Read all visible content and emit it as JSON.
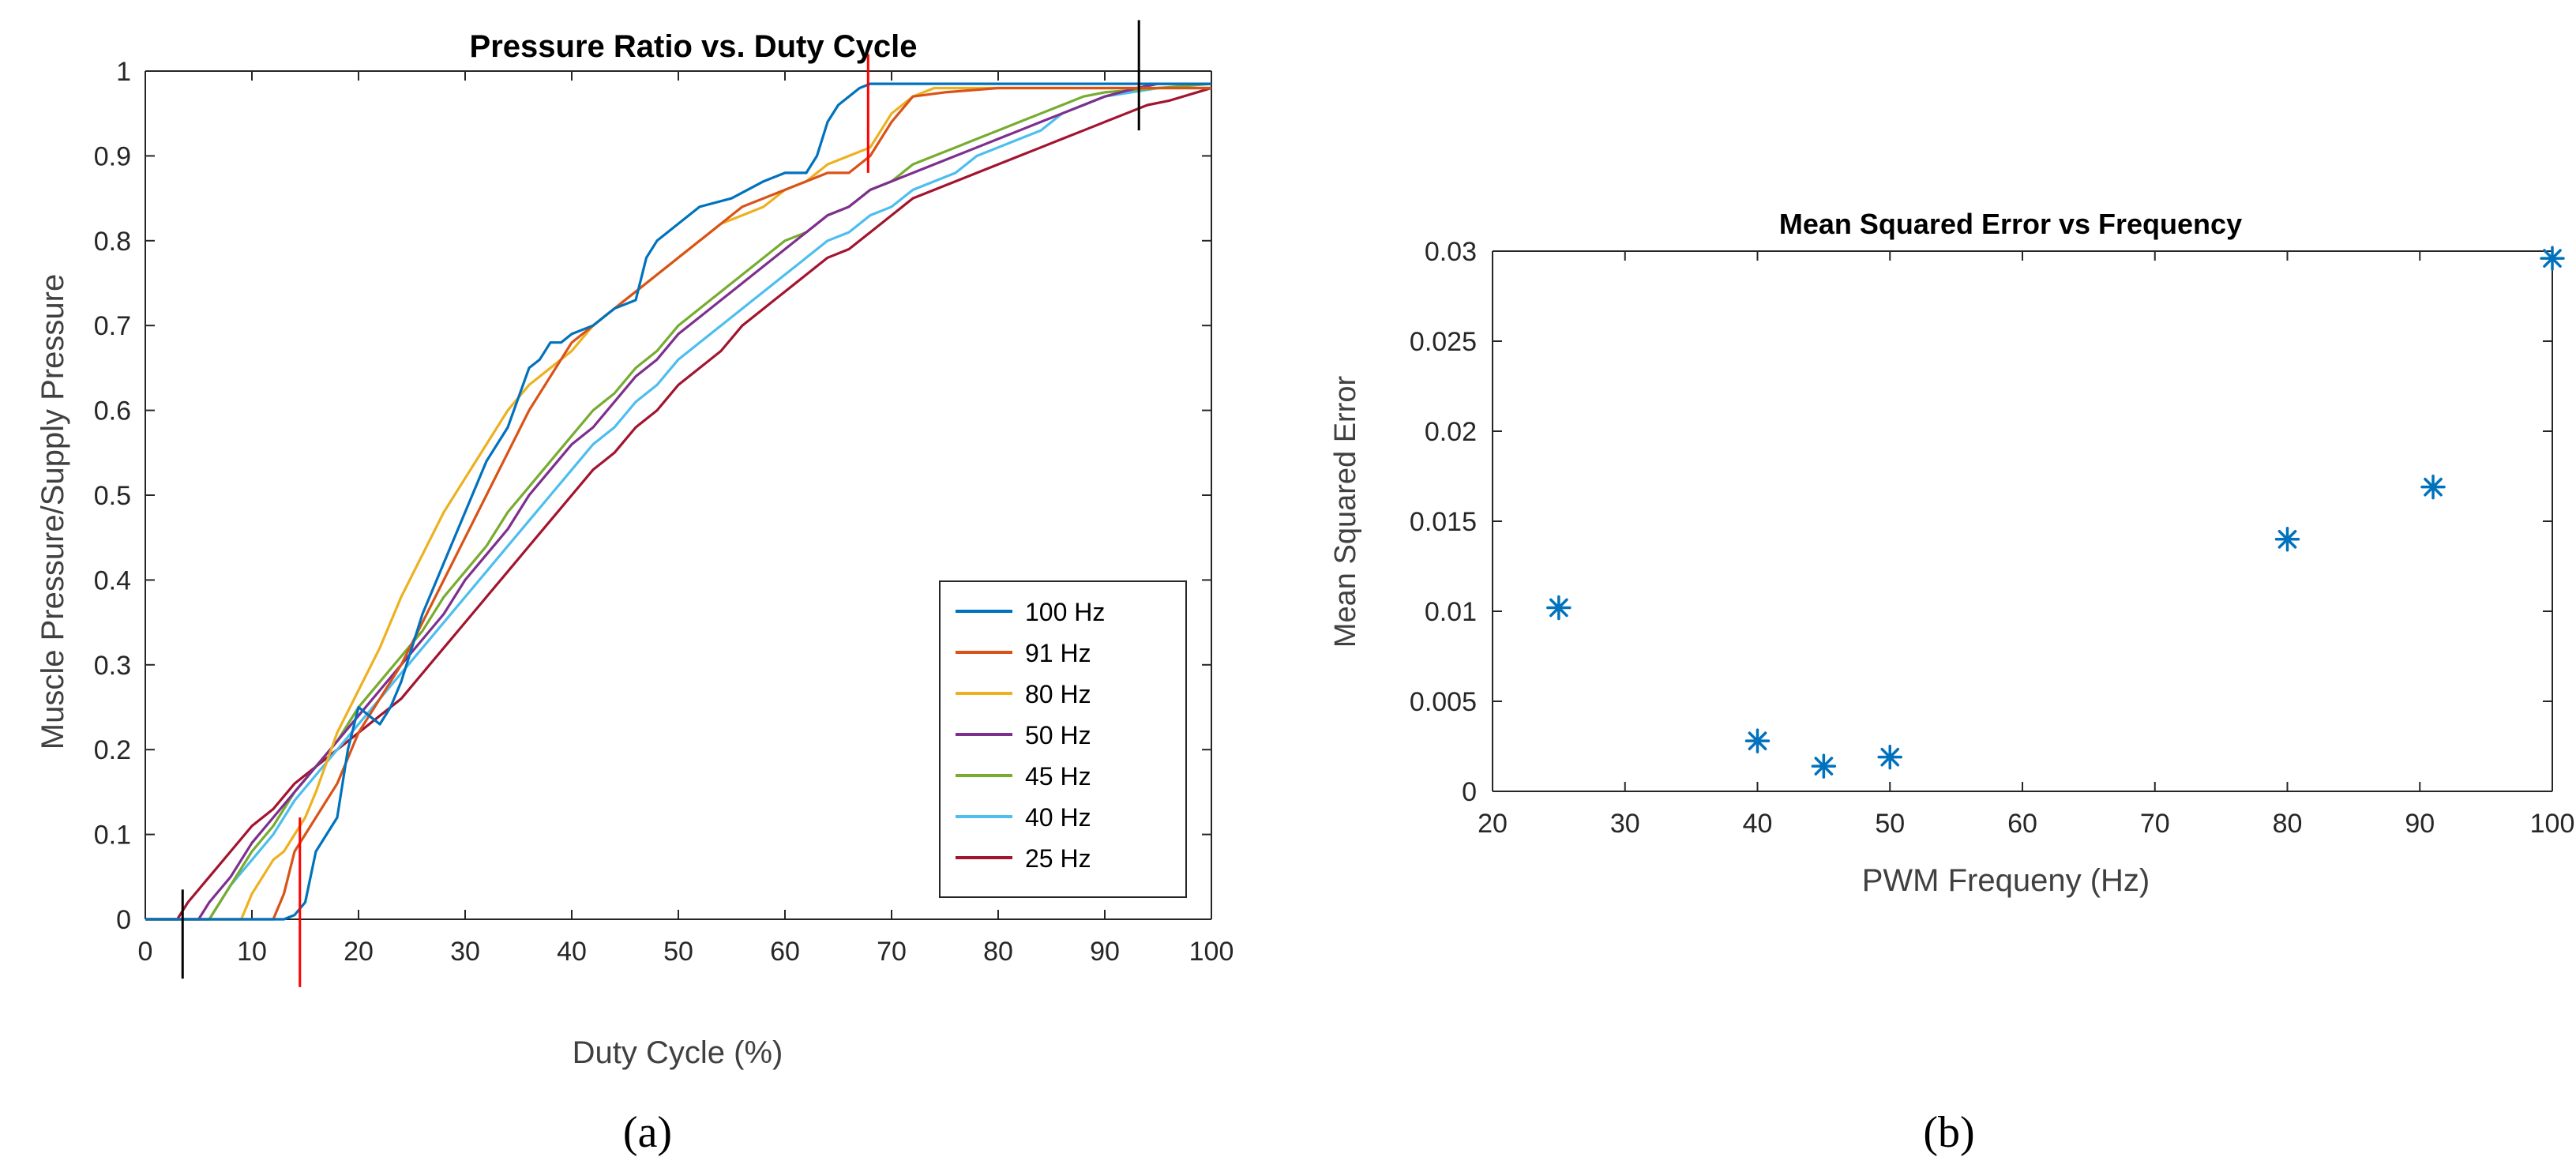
{
  "chart_data": [
    {
      "id": "a",
      "type": "line",
      "panel_label": "(a)",
      "title": "Pressure Ratio vs. Duty Cycle",
      "xlabel": "Duty Cycle (%)",
      "ylabel": "Muscle Pressure/Supply Pressure",
      "xlim": [
        0,
        100
      ],
      "ylim": [
        0,
        1
      ],
      "xticks": [
        0,
        10,
        20,
        30,
        40,
        50,
        60,
        70,
        80,
        90,
        100
      ],
      "yticks": [
        0,
        0.1,
        0.2,
        0.3,
        0.4,
        0.5,
        0.6,
        0.7,
        0.8,
        0.9,
        1
      ],
      "ytick_labels": [
        "0",
        "0.1",
        "0.2",
        "0.3",
        "0.4",
        "0.5",
        "0.6",
        "0.7",
        "0.8",
        "0.9",
        "1"
      ],
      "grid": false,
      "legend_position": "bottom-right",
      "series": [
        {
          "name": "100 Hz",
          "color": "#0072BD",
          "x": [
            0,
            13,
            14,
            15,
            16,
            17,
            18,
            19,
            20,
            21,
            22,
            23,
            24,
            26,
            28,
            30,
            32,
            34,
            36,
            37,
            38,
            39,
            40,
            42,
            44,
            46,
            47,
            48,
            50,
            52,
            55,
            58,
            60,
            62,
            63,
            64,
            65,
            67,
            68,
            70,
            75,
            80,
            85,
            90,
            95,
            100
          ],
          "y": [
            0,
            0,
            0.005,
            0.02,
            0.08,
            0.1,
            0.12,
            0.2,
            0.25,
            0.24,
            0.23,
            0.25,
            0.28,
            0.36,
            0.42,
            0.48,
            0.54,
            0.58,
            0.65,
            0.66,
            0.68,
            0.68,
            0.69,
            0.7,
            0.72,
            0.73,
            0.78,
            0.8,
            0.82,
            0.84,
            0.85,
            0.87,
            0.88,
            0.88,
            0.9,
            0.94,
            0.96,
            0.98,
            0.985,
            0.985,
            0.985,
            0.985,
            0.985,
            0.985,
            0.985,
            0.985
          ]
        },
        {
          "name": "91 Hz",
          "color": "#D95319",
          "x": [
            0,
            12,
            13,
            14,
            15,
            16,
            17,
            18,
            20,
            22,
            24,
            26,
            28,
            30,
            32,
            34,
            36,
            38,
            40,
            42,
            44,
            46,
            48,
            50,
            52,
            54,
            56,
            58,
            60,
            62,
            64,
            66,
            68,
            70,
            72,
            75,
            80,
            85,
            90,
            95,
            100
          ],
          "y": [
            0,
            0,
            0.03,
            0.08,
            0.1,
            0.12,
            0.14,
            0.16,
            0.22,
            0.26,
            0.3,
            0.35,
            0.4,
            0.45,
            0.5,
            0.55,
            0.6,
            0.64,
            0.68,
            0.7,
            0.72,
            0.74,
            0.76,
            0.78,
            0.8,
            0.82,
            0.84,
            0.85,
            0.86,
            0.87,
            0.88,
            0.88,
            0.9,
            0.94,
            0.97,
            0.975,
            0.98,
            0.98,
            0.98,
            0.98,
            0.98
          ]
        },
        {
          "name": "80 Hz",
          "color": "#EDB120",
          "x": [
            0,
            9,
            10,
            11,
            12,
            13,
            14,
            15,
            16,
            18,
            20,
            22,
            24,
            26,
            28,
            30,
            32,
            34,
            36,
            38,
            40,
            42,
            44,
            46,
            48,
            50,
            52,
            54,
            56,
            58,
            60,
            62,
            64,
            66,
            68,
            70,
            72,
            74,
            78,
            82,
            86,
            90,
            95,
            100
          ],
          "y": [
            0,
            0,
            0.03,
            0.05,
            0.07,
            0.08,
            0.1,
            0.12,
            0.15,
            0.22,
            0.27,
            0.32,
            0.38,
            0.43,
            0.48,
            0.52,
            0.56,
            0.6,
            0.63,
            0.65,
            0.67,
            0.7,
            0.72,
            0.74,
            0.76,
            0.78,
            0.8,
            0.82,
            0.83,
            0.84,
            0.86,
            0.87,
            0.89,
            0.9,
            0.91,
            0.95,
            0.97,
            0.98,
            0.98,
            0.98,
            0.98,
            0.98,
            0.98,
            0.98
          ]
        },
        {
          "name": "50 Hz",
          "color": "#7E2F8E",
          "x": [
            0,
            5,
            6,
            8,
            10,
            12,
            14,
            16,
            18,
            20,
            22,
            24,
            26,
            28,
            30,
            32,
            34,
            36,
            38,
            40,
            42,
            44,
            46,
            48,
            50,
            52,
            54,
            56,
            58,
            60,
            62,
            64,
            66,
            68,
            70,
            72,
            74,
            76,
            78,
            80,
            82,
            84,
            86,
            88,
            90,
            93,
            95,
            100
          ],
          "y": [
            0,
            0,
            0.02,
            0.05,
            0.09,
            0.12,
            0.15,
            0.18,
            0.21,
            0.24,
            0.27,
            0.3,
            0.33,
            0.36,
            0.4,
            0.43,
            0.46,
            0.5,
            0.53,
            0.56,
            0.58,
            0.61,
            0.64,
            0.66,
            0.69,
            0.71,
            0.73,
            0.75,
            0.77,
            0.79,
            0.81,
            0.83,
            0.84,
            0.86,
            0.87,
            0.88,
            0.89,
            0.9,
            0.91,
            0.92,
            0.93,
            0.94,
            0.95,
            0.96,
            0.97,
            0.98,
            0.985,
            0.985
          ]
        },
        {
          "name": "45 Hz",
          "color": "#77AC30",
          "x": [
            0,
            6,
            7,
            8,
            10,
            12,
            14,
            16,
            18,
            20,
            22,
            24,
            26,
            28,
            30,
            32,
            34,
            36,
            38,
            40,
            42,
            44,
            46,
            48,
            50,
            52,
            54,
            56,
            58,
            60,
            62,
            64,
            66,
            68,
            70,
            72,
            74,
            76,
            78,
            80,
            82,
            84,
            86,
            88,
            90,
            95,
            100
          ],
          "y": [
            0,
            0,
            0.02,
            0.04,
            0.08,
            0.11,
            0.15,
            0.18,
            0.21,
            0.25,
            0.28,
            0.31,
            0.34,
            0.38,
            0.41,
            0.44,
            0.48,
            0.51,
            0.54,
            0.57,
            0.6,
            0.62,
            0.65,
            0.67,
            0.7,
            0.72,
            0.74,
            0.76,
            0.78,
            0.8,
            0.81,
            0.83,
            0.84,
            0.86,
            0.87,
            0.89,
            0.9,
            0.91,
            0.92,
            0.93,
            0.94,
            0.95,
            0.96,
            0.97,
            0.975,
            0.98,
            0.985
          ]
        },
        {
          "name": "40 Hz",
          "color": "#4DBEEE",
          "x": [
            0,
            6,
            7,
            8,
            10,
            12,
            14,
            16,
            18,
            20,
            22,
            24,
            26,
            28,
            30,
            32,
            34,
            36,
            38,
            40,
            42,
            44,
            46,
            48,
            50,
            52,
            54,
            56,
            58,
            60,
            62,
            64,
            66,
            68,
            70,
            72,
            74,
            76,
            78,
            80,
            82,
            84,
            86,
            88,
            90,
            95,
            100
          ],
          "y": [
            0,
            0,
            0.02,
            0.04,
            0.07,
            0.1,
            0.14,
            0.17,
            0.2,
            0.23,
            0.26,
            0.29,
            0.32,
            0.35,
            0.38,
            0.41,
            0.44,
            0.47,
            0.5,
            0.53,
            0.56,
            0.58,
            0.61,
            0.63,
            0.66,
            0.68,
            0.7,
            0.72,
            0.74,
            0.76,
            0.78,
            0.8,
            0.81,
            0.83,
            0.84,
            0.86,
            0.87,
            0.88,
            0.9,
            0.91,
            0.92,
            0.93,
            0.95,
            0.96,
            0.97,
            0.98,
            0.98
          ]
        },
        {
          "name": "25 Hz",
          "color": "#A2142F",
          "x": [
            0,
            3,
            4,
            6,
            8,
            10,
            12,
            14,
            16,
            18,
            20,
            22,
            24,
            26,
            28,
            30,
            32,
            34,
            36,
            38,
            40,
            42,
            44,
            46,
            48,
            50,
            52,
            54,
            56,
            58,
            60,
            62,
            64,
            66,
            68,
            70,
            72,
            74,
            76,
            78,
            80,
            82,
            84,
            86,
            88,
            90,
            92,
            94,
            96,
            100
          ],
          "y": [
            0,
            0,
            0.02,
            0.05,
            0.08,
            0.11,
            0.13,
            0.16,
            0.18,
            0.2,
            0.22,
            0.24,
            0.26,
            0.29,
            0.32,
            0.35,
            0.38,
            0.41,
            0.44,
            0.47,
            0.5,
            0.53,
            0.55,
            0.58,
            0.6,
            0.63,
            0.65,
            0.67,
            0.7,
            0.72,
            0.74,
            0.76,
            0.78,
            0.79,
            0.81,
            0.83,
            0.85,
            0.86,
            0.87,
            0.88,
            0.89,
            0.9,
            0.91,
            0.92,
            0.93,
            0.94,
            0.95,
            0.96,
            0.965,
            0.98
          ]
        }
      ],
      "annotations": [
        {
          "type": "vline",
          "x": 3.5,
          "y_from": -0.07,
          "y_to": 0.035,
          "color": "#000000"
        },
        {
          "type": "vline",
          "x": 14.5,
          "y_from": -0.08,
          "y_to": 0.12,
          "color": "#FF0000"
        },
        {
          "type": "vline",
          "x": 67.8,
          "y_from": 0.88,
          "y_to": 1.02,
          "color": "#FF0000"
        },
        {
          "type": "vline",
          "x": 93.2,
          "y_from": 0.93,
          "y_to": 1.06,
          "color": "#000000"
        }
      ]
    },
    {
      "id": "b",
      "type": "scatter",
      "panel_label": "(b)",
      "title": "Mean Squared Error vs Frequency",
      "xlabel": "PWM Frequeny (Hz)",
      "ylabel": "Mean Squared Error",
      "xlim": [
        20,
        100
      ],
      "ylim": [
        0,
        0.03
      ],
      "xticks": [
        20,
        30,
        40,
        50,
        60,
        70,
        80,
        90,
        100
      ],
      "yticks": [
        0,
        0.005,
        0.01,
        0.015,
        0.02,
        0.025,
        0.03
      ],
      "ytick_labels": [
        "0",
        "0.005",
        "0.01",
        "0.015",
        "0.02",
        "0.025",
        "0.03"
      ],
      "grid": false,
      "marker": "asterisk",
      "color": "#0072BD",
      "x": [
        25,
        40,
        45,
        50,
        80,
        91,
        100
      ],
      "y": [
        0.0102,
        0.0028,
        0.0014,
        0.0019,
        0.014,
        0.0169,
        0.0296
      ]
    }
  ]
}
